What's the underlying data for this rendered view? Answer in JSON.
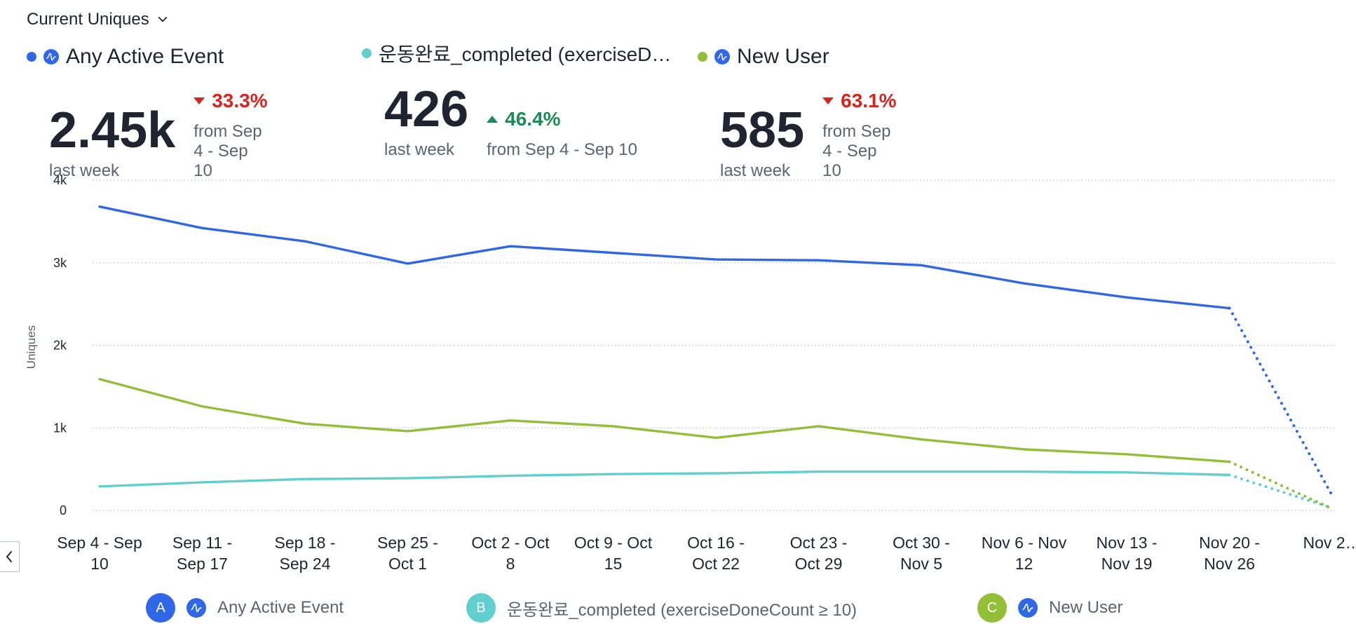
{
  "header": {
    "metric_selector": "Current Uniques"
  },
  "cards": [
    {
      "name": "Any Active Event",
      "value": "2.45k",
      "value_sub": "last week",
      "change": "33.3%",
      "change_dir": "down",
      "change_sub": "from Sep 4 - Sep 10",
      "color": "#2f67e7",
      "has_amp_icon": true
    },
    {
      "name": "운동완료_completed (exerciseD…",
      "value": "426",
      "value_sub": "last week",
      "change": "46.4%",
      "change_dir": "up",
      "change_sub": "from Sep 4 - Sep 10",
      "color": "#62cfcf",
      "has_amp_icon": false
    },
    {
      "name": "New User",
      "value": "585",
      "value_sub": "last week",
      "change": "63.1%",
      "change_dir": "down",
      "change_sub": "from Sep 4 - Sep 10",
      "color": "#93be38",
      "has_amp_icon": true
    }
  ],
  "legend": [
    {
      "letter": "A",
      "label": "Any Active Event",
      "color": "#2f67e7",
      "has_amp_icon": true
    },
    {
      "letter": "B",
      "label": "운동완료_completed (exerciseDoneCount ≥ 10)",
      "color": "#62cfcf",
      "has_amp_icon": false
    },
    {
      "letter": "C",
      "label": "New User",
      "color": "#93be38",
      "has_amp_icon": true
    }
  ],
  "chart_data": {
    "type": "line",
    "ylabel": "Uniques",
    "ylim": [
      0,
      4000
    ],
    "yticks": [
      0,
      1000,
      2000,
      3000,
      4000
    ],
    "ytick_labels": [
      "0",
      "1k",
      "2k",
      "3k",
      "4k"
    ],
    "categories": [
      "Sep 4 - Sep 10",
      "Sep 11 - Sep 17",
      "Sep 18 - Sep 24",
      "Sep 25 - Oct 1",
      "Oct 2 - Oct 8",
      "Oct 9 - Oct 15",
      "Oct 16 - Oct 22",
      "Oct 23 - Oct 29",
      "Oct 30 - Nov 5",
      "Nov 6 - Nov 12",
      "Nov 13 - Nov 19",
      "Nov 20 - Nov 26",
      "Nov 2…"
    ],
    "category_tick_labels": [
      [
        "Sep 4 - Sep",
        "10"
      ],
      [
        "Sep 11 -",
        "Sep 17"
      ],
      [
        "Sep 18 -",
        "Sep 24"
      ],
      [
        "Sep 25 -",
        "Oct 1"
      ],
      [
        "Oct 2 - Oct",
        "8"
      ],
      [
        "Oct 9 - Oct",
        "15"
      ],
      [
        "Oct 16 -",
        "Oct 22"
      ],
      [
        "Oct 23 -",
        "Oct 29"
      ],
      [
        "Oct 30 -",
        "Nov 5"
      ],
      [
        "Nov 6 - Nov",
        "12"
      ],
      [
        "Nov 13 -",
        "Nov 19"
      ],
      [
        "Nov 20 -",
        "Nov 26"
      ],
      [
        "Nov 2…",
        ""
      ]
    ],
    "series": [
      {
        "name": "Any Active Event",
        "color": "#2f67e7",
        "values": [
          3680,
          3420,
          3260,
          2990,
          3200,
          3120,
          3040,
          3030,
          2970,
          2750,
          2580,
          2450,
          180
        ]
      },
      {
        "name": "운동완료_completed (exerciseDoneCount ≥ 10)",
        "color": "#62cfcf",
        "values": [
          290,
          340,
          380,
          390,
          420,
          440,
          450,
          470,
          470,
          470,
          460,
          430,
          30
        ]
      },
      {
        "name": "New User",
        "color": "#93be38",
        "values": [
          1590,
          1260,
          1050,
          960,
          1090,
          1020,
          880,
          1020,
          860,
          740,
          680,
          590,
          20
        ]
      }
    ],
    "dashed_last_segment": true,
    "grid": true
  }
}
